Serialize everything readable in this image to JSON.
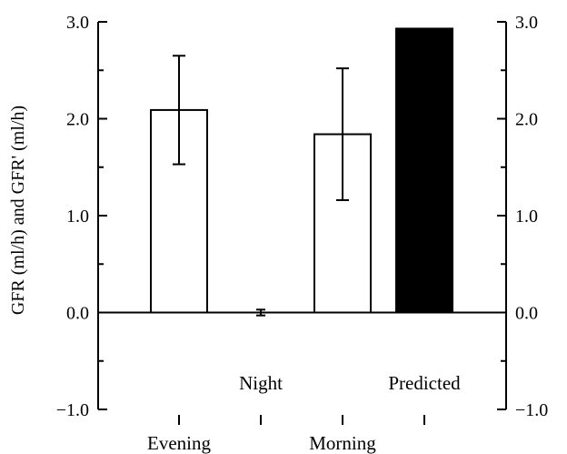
{
  "chart_data": {
    "type": "bar",
    "categories": [
      "Evening",
      "Night",
      "Morning",
      "Predicted"
    ],
    "values": [
      2.09,
      0.0,
      1.84,
      2.93
    ],
    "errors": [
      0.56,
      0.03,
      0.68,
      null
    ],
    "bar_fills": [
      "#ffffff",
      "#ffffff",
      "#ffffff",
      "#000000"
    ],
    "ylabel": "GFR (ml/h) and GFR' (ml/h)",
    "ylim": [
      -1.0,
      3.0
    ],
    "yticks": [
      -1.0,
      0.0,
      1.0,
      2.0,
      3.0
    ],
    "ytick_labels": [
      "−1.0",
      "0.0",
      "1.0",
      "2.0",
      "3.0"
    ],
    "right_axis": true,
    "grid": false,
    "category_labels_row": [
      "upper",
      "lower",
      "upper",
      "lower"
    ]
  }
}
